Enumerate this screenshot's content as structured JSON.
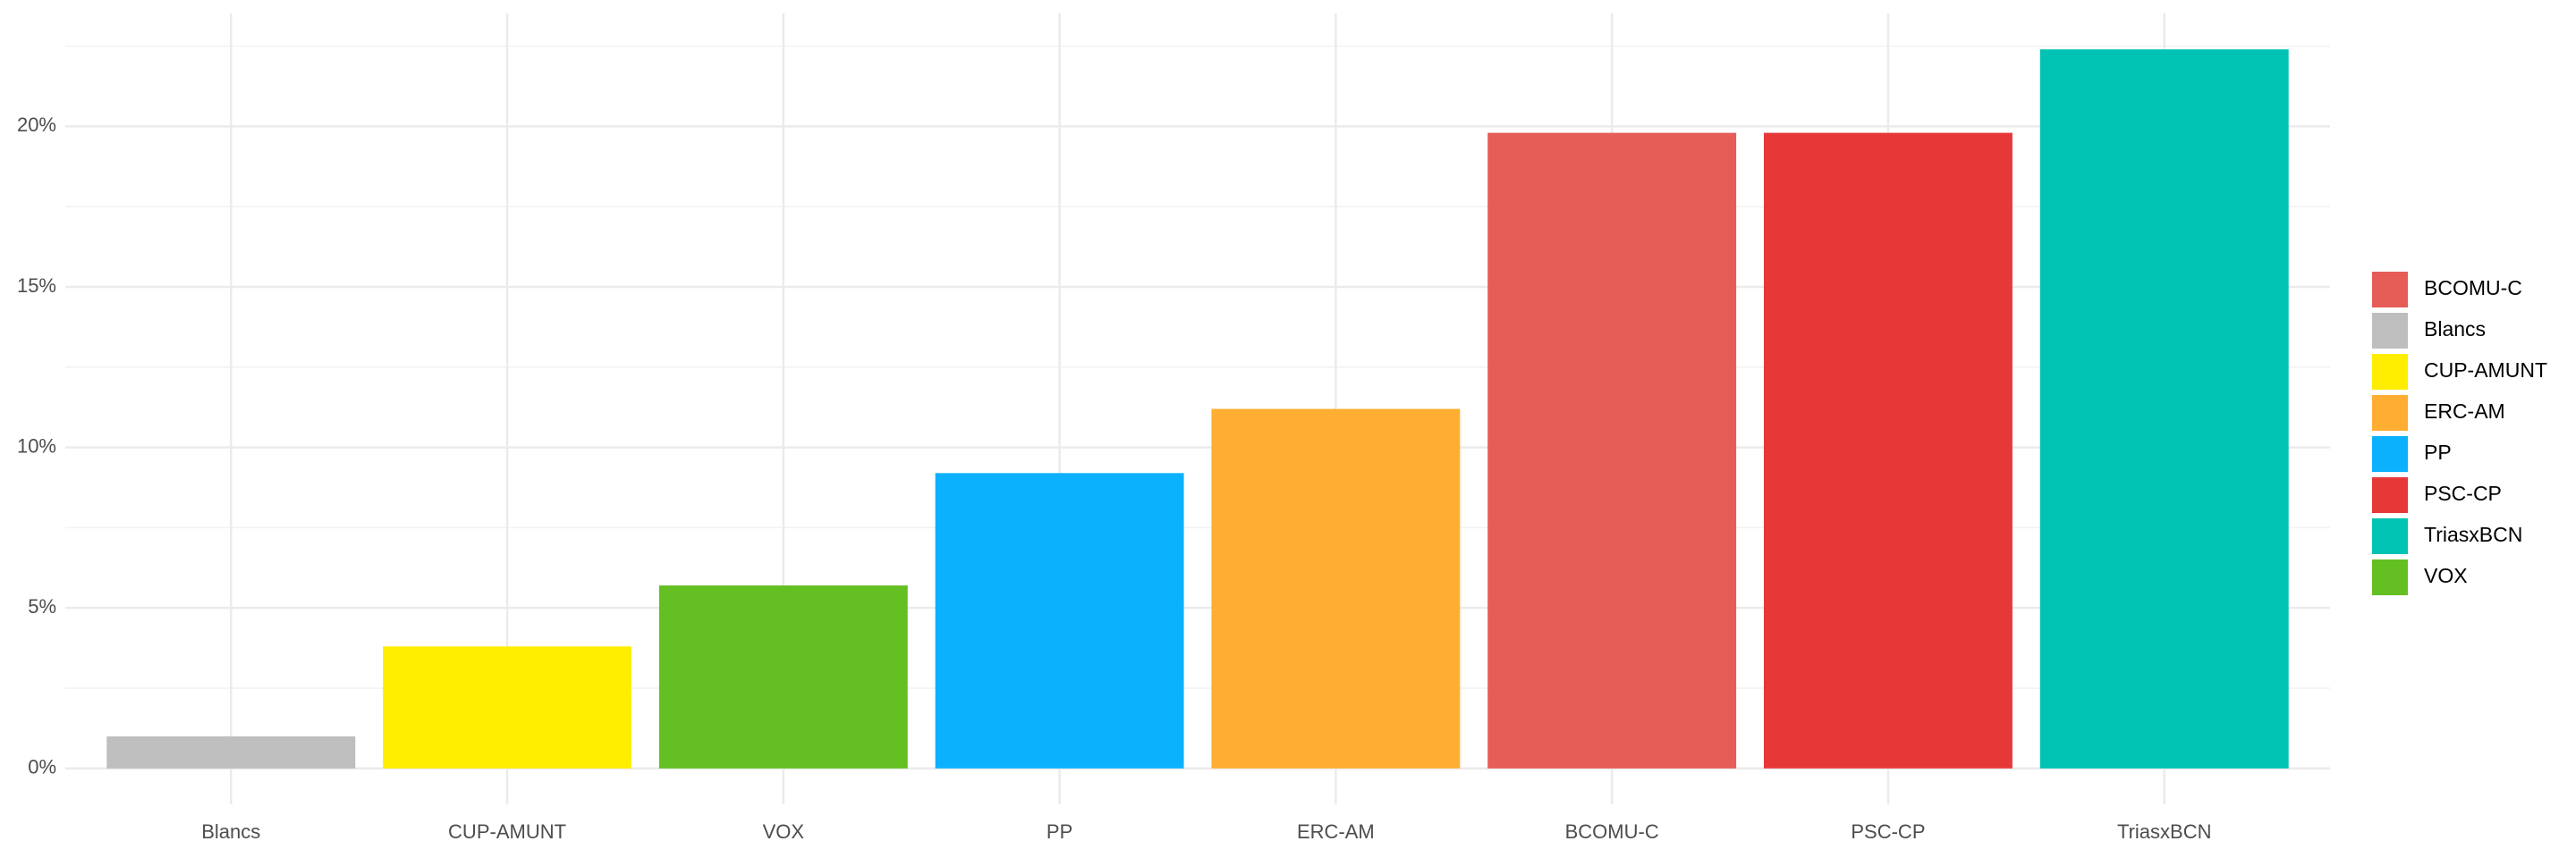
{
  "chart_data": {
    "type": "bar",
    "categories": [
      "Blancs",
      "CUP-AMUNT",
      "VOX",
      "PP",
      "ERC-AM",
      "BCOMU-C",
      "PSC-CP",
      "TriasxBCN"
    ],
    "values": [
      1.0,
      3.8,
      5.7,
      9.2,
      11.2,
      19.8,
      19.8,
      22.4
    ],
    "ylim": [
      -1.12,
      23.52
    ],
    "yticks": [
      {
        "value": 0,
        "label": "0%"
      },
      {
        "value": 5,
        "label": "5%"
      },
      {
        "value": 10,
        "label": "10%"
      },
      {
        "value": 15,
        "label": "15%"
      },
      {
        "value": 20,
        "label": "20%"
      }
    ],
    "grid": true,
    "legend_position": "right",
    "legend": [
      {
        "name": "BCOMU-C",
        "color": "#e65c56"
      },
      {
        "name": "Blancs",
        "color": "#bebebe"
      },
      {
        "name": "CUP-AMUNT",
        "color": "#ffed00"
      },
      {
        "name": "ERC-AM",
        "color": "#ffae33"
      },
      {
        "name": "PP",
        "color": "#0bb1fd"
      },
      {
        "name": "PSC-CP",
        "color": "#e73838"
      },
      {
        "name": "TriasxBCN",
        "color": "#00c3b3"
      },
      {
        "name": "VOX",
        "color": "#64bf22"
      }
    ]
  }
}
